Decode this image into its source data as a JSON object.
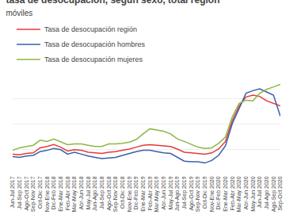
{
  "chart_data": {
    "type": "line",
    "title": "tasa de desocupación, según sexo, total región",
    "subtitle": "móviles",
    "categories": [
      "Jun-Jul 2017",
      "Jul-Sep 2017",
      "Ago-Oct 2017",
      "Sep-Nov 2017",
      "Oct-Dic 2017",
      "Nov-Ene 2018",
      "Dic-Feb 2018",
      "Ene-Mar 2018",
      "Feb-Abr 2018",
      "Mar-May 2018",
      "Abr-Jun 2018",
      "May-Jul 2018",
      "Jun-Ago 2018",
      "Jul-Sep 2018",
      "Ago-Oct 2018",
      "Sep-Nov 2018",
      "Oct-Dic 2018",
      "Nov-Ene 2019",
      "Dic-Feb 2019",
      "Ene-Mar 2019",
      "Feb-Abr 2019",
      "Mar-May 2019",
      "Abr-Jun 2019",
      "May-Jul 2019",
      "Jun-Ago 2019",
      "Jul-Sep 2019",
      "Ago-Oct 2019",
      "Sep-Nov 2019",
      "Oct-Dic 2019",
      "Nov-Ene 2020",
      "Dic-Feb 2020",
      "Ene-Mar 2020",
      "Feb-Abr 2020",
      "Mar-May 2020",
      "Abr-Jun 2020",
      "May-Jun 2020",
      "Jun-Jul 2020",
      "Jul-Ago 2020",
      "Ago-Sep 2020",
      "Sep-Oct 2020"
    ],
    "series": [
      {
        "name": "Tasa de desocupación región",
        "color": "#e8393a",
        "values": [
          7.2,
          7.1,
          7.3,
          7.4,
          8.2,
          8.4,
          8.7,
          8.3,
          7.7,
          7.9,
          7.8,
          7.5,
          7.4,
          7.3,
          7.5,
          7.6,
          7.8,
          8.0,
          8.3,
          8.6,
          8.7,
          8.6,
          8.5,
          8.4,
          8.0,
          7.5,
          7.4,
          7.3,
          7.2,
          7.4,
          8.0,
          9.2,
          12.5,
          14.8,
          16.2,
          16.5,
          16.3,
          15.6,
          15.2,
          14.8
        ]
      },
      {
        "name": "Tasa de desocupación hombres",
        "color": "#3a5fa8",
        "values": [
          6.8,
          6.7,
          6.9,
          7.0,
          7.6,
          7.8,
          8.1,
          7.9,
          7.2,
          7.5,
          7.2,
          6.9,
          6.7,
          6.5,
          6.6,
          6.7,
          7.0,
          7.3,
          7.6,
          7.8,
          7.8,
          7.6,
          7.4,
          7.3,
          6.7,
          6.1,
          6.0,
          6.0,
          5.8,
          6.2,
          7.0,
          8.5,
          12.0,
          14.5,
          16.8,
          17.2,
          17.5,
          17.0,
          16.5,
          13.2
        ]
      },
      {
        "name": "Tasa de desocupación mujeres",
        "color": "#8db744",
        "values": [
          7.8,
          8.2,
          8.4,
          8.6,
          9.4,
          9.2,
          9.6,
          9.1,
          8.7,
          8.8,
          8.8,
          8.6,
          8.4,
          8.4,
          8.8,
          8.8,
          8.9,
          9.1,
          9.5,
          10.4,
          11.2,
          11.0,
          10.8,
          10.4,
          9.6,
          9.2,
          8.7,
          8.3,
          8.1,
          8.2,
          8.9,
          9.9,
          13.1,
          15.2,
          15.7,
          15.6,
          16.8,
          17.4,
          17.8,
          18.2
        ]
      }
    ],
    "ylim": [
      4,
      20
    ],
    "yticks": [
      4,
      8,
      12,
      16,
      20
    ],
    "grid": true,
    "legend": "top",
    "tick_labels": "x"
  }
}
